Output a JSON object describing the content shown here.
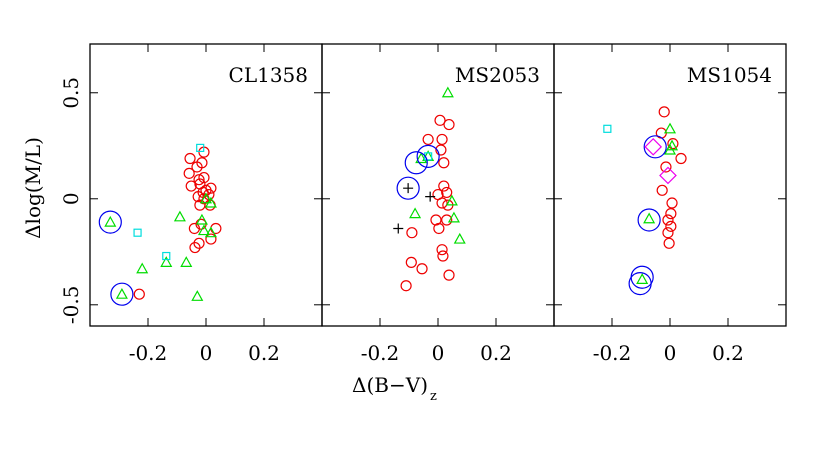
{
  "ylabel": "Δlog(M/L)",
  "xlabel": "Δ(B−V)",
  "xlabel_sub": "z",
  "chart_data": [
    {
      "type": "scatter",
      "title": "CL1358",
      "xlim": [
        -0.4,
        0.4
      ],
      "ylim": [
        -0.6,
        0.73
      ],
      "xticks": [
        -0.2,
        0,
        0.2
      ],
      "yticks": [
        -0.5,
        0,
        0.5
      ],
      "show_ytick_labels": true,
      "series": [
        {
          "marker": "circle",
          "color": "#ee0000",
          "x": [
            -0.007,
            -0.055,
            -0.014,
            -0.031,
            -0.058,
            -0.007,
            -0.024,
            -0.051,
            -0.021,
            0.0,
            0.017,
            -0.01,
            0.01,
            -0.027,
            -0.007,
            -0.021,
            0.014,
            -0.04,
            -0.017,
            0.034,
            0.017,
            -0.024,
            -0.038,
            -0.23
          ],
          "y": [
            0.22,
            0.19,
            0.17,
            0.15,
            0.12,
            0.1,
            0.09,
            0.06,
            0.07,
            0.04,
            0.05,
            0.03,
            0.02,
            0.01,
            0.0,
            -0.03,
            -0.03,
            -0.14,
            -0.12,
            -0.14,
            -0.19,
            -0.21,
            -0.23,
            -0.45
          ]
        },
        {
          "marker": "triangle",
          "color": "#00dd00",
          "x": [
            -0.09,
            0.017,
            -0.014,
            -0.007,
            -0.137,
            -0.068,
            -0.22,
            -0.03,
            -0.33,
            -0.29,
            0.0,
            0.017
          ],
          "y": [
            -0.085,
            -0.02,
            -0.1,
            -0.15,
            -0.3,
            -0.3,
            -0.33,
            -0.46,
            -0.11,
            -0.45,
            0.0,
            -0.16
          ]
        },
        {
          "marker": "square",
          "color": "#00dddd",
          "x": [
            -0.02,
            -0.236,
            -0.137
          ],
          "y": [
            0.24,
            -0.16,
            -0.27
          ]
        },
        {
          "marker": "bigcircle",
          "color": "#0000ee",
          "x": [
            -0.33,
            -0.29
          ],
          "y": [
            -0.11,
            -0.45
          ]
        }
      ]
    },
    {
      "type": "scatter",
      "title": "MS2053",
      "xlim": [
        -0.4,
        0.4
      ],
      "ylim": [
        -0.6,
        0.73
      ],
      "xticks": [
        -0.2,
        0,
        0.2
      ],
      "yticks": [
        -0.5,
        0,
        0.5
      ],
      "show_ytick_labels": false,
      "series": [
        {
          "marker": "circle",
          "color": "#ee0000",
          "x": [
            0.007,
            0.038,
            -0.034,
            0.014,
            0.01,
            0.02,
            0.02,
            0.03,
            0.0,
            0.014,
            0.034,
            -0.007,
            0.03,
            0.003,
            0.014,
            0.017,
            -0.092,
            -0.055,
            0.038,
            -0.11,
            -0.09
          ],
          "y": [
            0.37,
            0.35,
            0.28,
            0.28,
            0.23,
            0.17,
            0.06,
            0.03,
            0.02,
            -0.02,
            -0.03,
            -0.1,
            -0.1,
            -0.14,
            -0.24,
            -0.27,
            -0.3,
            -0.33,
            -0.36,
            -0.41,
            -0.16
          ]
        },
        {
          "marker": "triangle",
          "color": "#00dd00",
          "x": [
            0.034,
            -0.058,
            -0.034,
            -0.079,
            0.048,
            0.055,
            0.075
          ],
          "y": [
            0.5,
            0.19,
            0.2,
            -0.07,
            -0.01,
            -0.09,
            -0.19
          ]
        },
        {
          "marker": "square",
          "color": "#00dddd",
          "x": [
            -0.034
          ],
          "y": [
            0.2
          ]
        },
        {
          "marker": "bigcircle",
          "color": "#0000ee",
          "x": [
            -0.075,
            -0.034,
            -0.103
          ],
          "y": [
            0.17,
            0.2,
            0.05
          ]
        },
        {
          "marker": "plus",
          "color": "#000000",
          "x": [
            -0.103,
            -0.027,
            -0.137
          ],
          "y": [
            0.05,
            0.01,
            -0.14
          ]
        }
      ]
    },
    {
      "type": "scatter",
      "title": "MS1054",
      "xlim": [
        -0.4,
        0.4
      ],
      "ylim": [
        -0.6,
        0.73
      ],
      "xticks": [
        -0.2,
        0,
        0.2
      ],
      "yticks": [
        -0.5,
        0,
        0.5
      ],
      "show_ytick_labels": false,
      "series": [
        {
          "marker": "circle",
          "color": "#ee0000",
          "x": [
            -0.02,
            -0.03,
            0.01,
            0.038,
            -0.014,
            -0.027,
            0.007,
            0.003,
            -0.007,
            0.003,
            -0.007,
            -0.003
          ],
          "y": [
            0.41,
            0.31,
            0.26,
            0.19,
            0.15,
            0.04,
            -0.02,
            -0.07,
            -0.1,
            -0.13,
            -0.16,
            -0.21
          ]
        },
        {
          "marker": "triangle",
          "color": "#00dd00",
          "x": [
            0.0,
            0.007,
            0.0,
            -0.072,
            -0.096
          ],
          "y": [
            0.33,
            0.25,
            0.23,
            -0.094,
            -0.38
          ]
        },
        {
          "marker": "square",
          "color": "#00dddd",
          "x": [
            -0.216
          ],
          "y": [
            0.33
          ]
        },
        {
          "marker": "bigcircle",
          "color": "#0000ee",
          "x": [
            -0.051,
            -0.072,
            -0.096,
            -0.103
          ],
          "y": [
            0.245,
            -0.1,
            -0.37,
            -0.4
          ]
        },
        {
          "marker": "diamond",
          "color": "#ee00ee",
          "x": [
            -0.058,
            -0.007
          ],
          "y": [
            0.245,
            0.11
          ]
        }
      ]
    }
  ]
}
